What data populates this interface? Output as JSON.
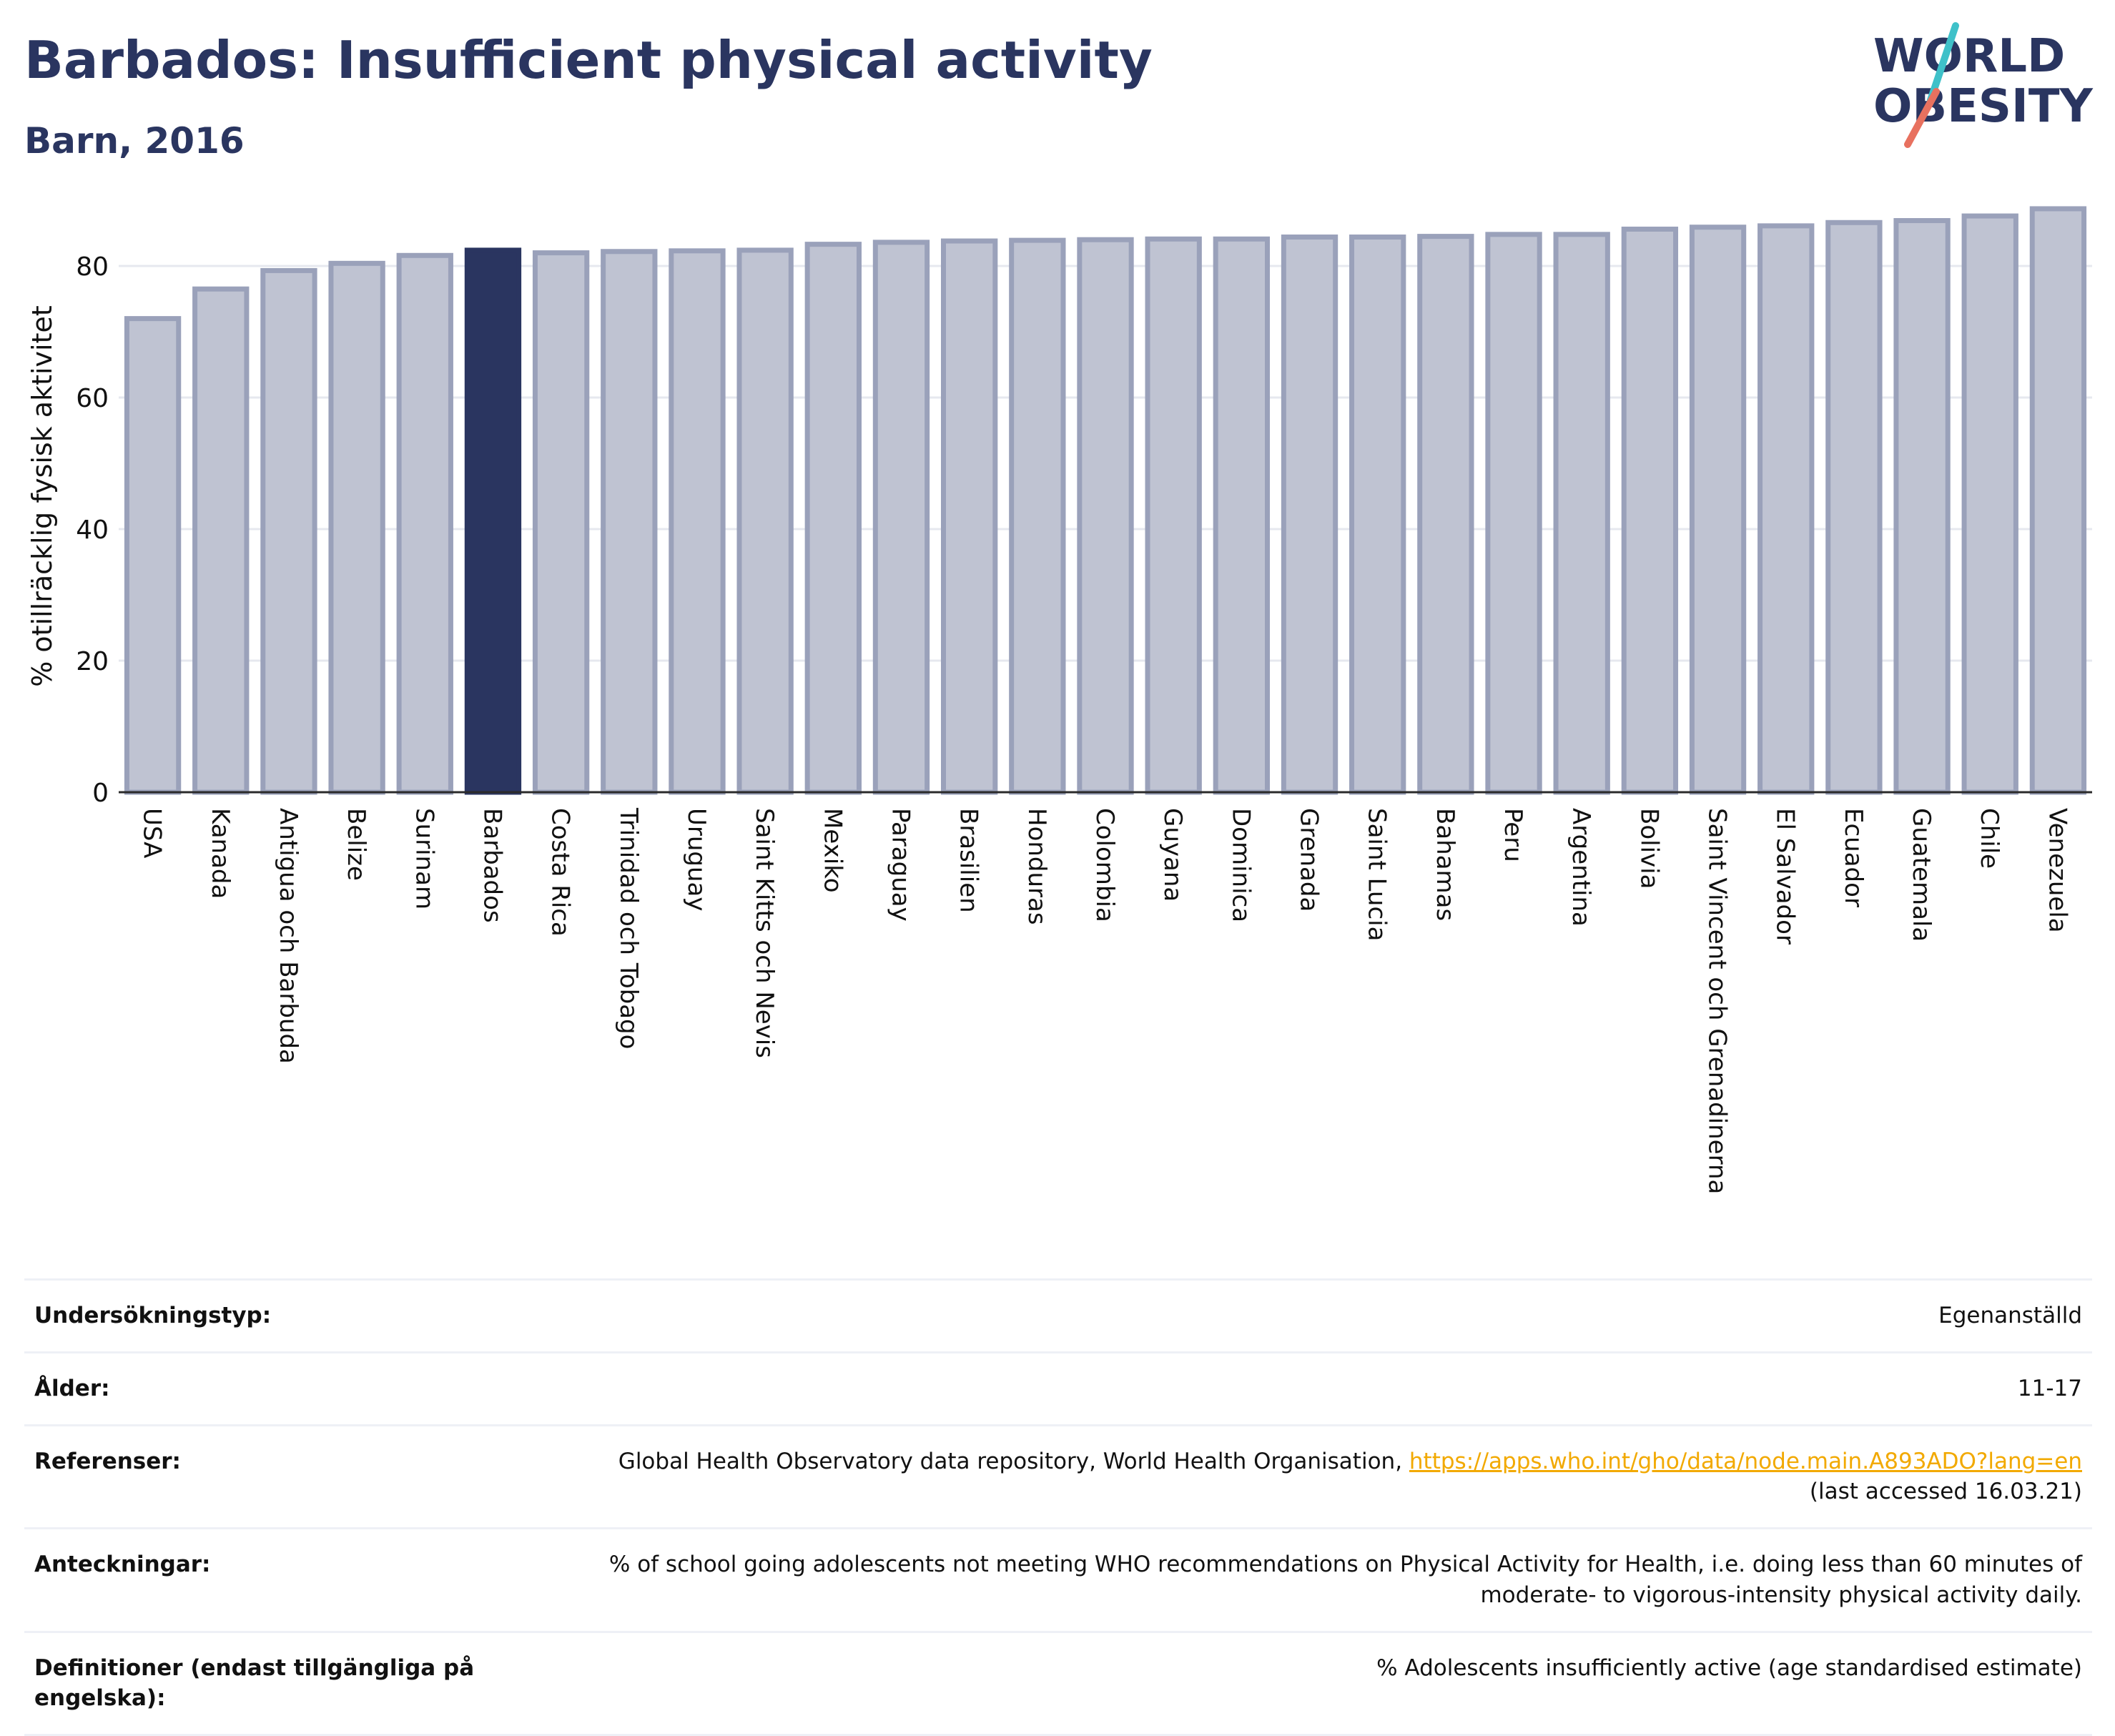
{
  "header": {
    "title": "Barbados: Insufficient physical activity",
    "subtitle": "Barn, 2016"
  },
  "logo": {
    "line1": "WORLD",
    "line2": "OBESITY",
    "accent_colors": [
      "#3fc1c9",
      "#e8715f"
    ]
  },
  "colors": {
    "highlight": "#2a3560",
    "bar_fill": "#bfc3d2",
    "bar_stroke": "#9aa1ba",
    "grid": "#e6e8ef",
    "axis_text": "#111111"
  },
  "chart_data": {
    "type": "bar",
    "title": "",
    "xlabel": "",
    "ylabel": "% otillräcklig fysisk aktivitet",
    "ylim": [
      0,
      90
    ],
    "yticks": [
      0,
      20,
      40,
      60,
      80
    ],
    "grid": true,
    "highlight": "Barbados",
    "categories": [
      "USA",
      "Kanada",
      "Antigua och Barbuda",
      "Belize",
      "Surinam",
      "Barbados",
      "Costa Rica",
      "Trinidad och Tobago",
      "Uruguay",
      "Saint Kitts och Nevis",
      "Mexiko",
      "Paraguay",
      "Brasilien",
      "Honduras",
      "Colombia",
      "Guyana",
      "Dominica",
      "Grenada",
      "Saint Lucia",
      "Bahamas",
      "Peru",
      "Argentina",
      "Bolivia",
      "Saint Vincent och Grenadinerna",
      "El Salvador",
      "Ecuador",
      "Guatemala",
      "Chile",
      "Venezuela"
    ],
    "values": [
      72.0,
      76.5,
      79.3,
      80.4,
      81.6,
      82.4,
      82.0,
      82.2,
      82.3,
      82.4,
      83.3,
      83.6,
      83.8,
      83.9,
      84.0,
      84.1,
      84.1,
      84.4,
      84.4,
      84.5,
      84.8,
      84.8,
      85.6,
      85.9,
      86.1,
      86.6,
      86.9,
      87.6,
      88.7
    ]
  },
  "info": [
    {
      "label": "Undersökningstyp:",
      "value": "Egenanställd"
    },
    {
      "label": "Ålder:",
      "value": "11-17"
    },
    {
      "label": "Referenser:",
      "value_before": "Global Health Observatory data repository, World Health Organisation, ",
      "link": "https://apps.who.int/gho/data/node.main.A893ADO?lang=en",
      "value_after": "(last accessed 16.03.21)"
    },
    {
      "label": "Anteckningar:",
      "value": "% of school going adolescents not meeting WHO recommendations on Physical Activity for Health, i.e. doing less than 60 minutes of moderate- to vigorous-intensity physical activity daily."
    },
    {
      "label": "Definitioner (endast tillgängliga på engelska):",
      "value": "% Adolescents insufficiently active (age standardised estimate)"
    }
  ]
}
